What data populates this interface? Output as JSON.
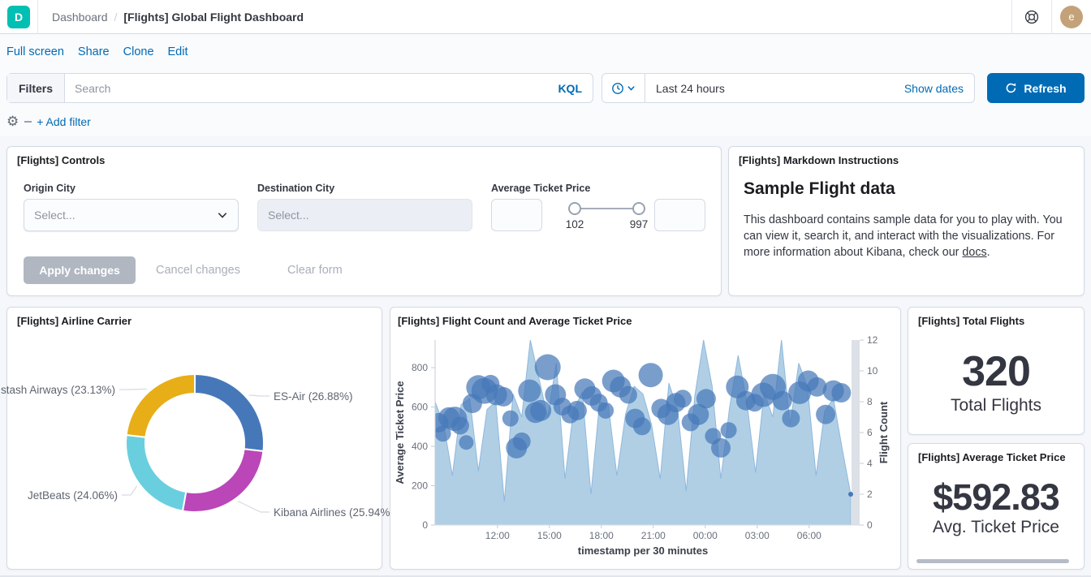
{
  "app": {
    "logo_letter": "D",
    "logo_color": "#00BFB3"
  },
  "header": {
    "breadcrumb": {
      "parent": "Dashboard",
      "separator": "/",
      "current": "[Flights] Global Flight Dashboard"
    },
    "avatar_initial": "e"
  },
  "toolbar": {
    "links": [
      "Full screen",
      "Share",
      "Clone",
      "Edit"
    ]
  },
  "filter_bar": {
    "filters_label": "Filters",
    "search_placeholder": "Search",
    "kql_label": "KQL",
    "add_filter_label": "+ Add filter"
  },
  "time_picker": {
    "range_label": "Last 24 hours",
    "show_dates_label": "Show dates",
    "refresh_label": "Refresh"
  },
  "panels": {
    "controls": {
      "title": "[Flights] Controls",
      "origin": {
        "label": "Origin City",
        "placeholder": "Select..."
      },
      "destination": {
        "label": "Destination City",
        "placeholder": "Select..."
      },
      "price": {
        "label": "Average Ticket Price",
        "min_value": "102",
        "max_value": "997"
      },
      "apply_label": "Apply changes",
      "cancel_label": "Cancel changes",
      "clear_label": "Clear form"
    },
    "markdown": {
      "title": "[Flights] Markdown Instructions",
      "heading": "Sample Flight data",
      "body_before_link": "This dashboard contains sample data for you to play with. You can view it, search it, and interact with the visualizations. For more information about Kibana, check our ",
      "link_text": "docs",
      "body_after_link": "."
    },
    "pie": {
      "title": "[Flights] Airline Carrier"
    },
    "timeseries": {
      "title": "[Flights] Flight Count and Average Ticket Price"
    },
    "total_flights": {
      "title": "[Flights] Total Flights",
      "value": "320",
      "label": "Total Flights"
    },
    "avg_price": {
      "title": "[Flights] Average Ticket Price",
      "value": "$592.83",
      "label": "Avg. Ticket Price"
    }
  },
  "chart_data": [
    {
      "type": "pie",
      "title": "[Flights] Airline Carrier",
      "donut": true,
      "slices": [
        {
          "name": "ES-Air",
          "pct": 26.88,
          "label": "ES-Air (26.88%)",
          "color": "#4678B9",
          "label_x": 328,
          "label_y": 88,
          "anchor": "start"
        },
        {
          "name": "Kibana Airlines",
          "pct": 25.94,
          "label": "Kibana Airlines (25.94%)",
          "color": "#BA46B8",
          "label_x": 328,
          "label_y": 231,
          "anchor": "start"
        },
        {
          "name": "JetBeats",
          "pct": 24.06,
          "label": "JetBeats (24.06%)",
          "color": "#69CFDF",
          "label_x": 136,
          "label_y": 210,
          "anchor": "end"
        },
        {
          "name": "stash Airways",
          "pct": 23.13,
          "label": "stash Airways (23.13%)",
          "color": "#E8AE17",
          "label_x": 133,
          "label_y": 80,
          "anchor": "end"
        }
      ],
      "legend_position": "callout-labels",
      "label_color": "#5F6570"
    },
    {
      "type": "mixed",
      "title": "[Flights] Flight Count and Average Ticket Price",
      "x_axis": {
        "title": "timestamp per 30 minutes",
        "tick_labels": [
          "12:00",
          "15:00",
          "18:00",
          "21:00",
          "00:00",
          "03:00",
          "06:00"
        ],
        "tick_t": [
          7.2,
          13.2,
          19.2,
          25.2,
          31.2,
          37.2,
          43.2
        ],
        "bucket_count": 48
      },
      "y_left": {
        "title": "Average Ticket Price",
        "ticks": [
          0,
          200,
          400,
          600,
          800
        ],
        "range": [
          0,
          950
        ]
      },
      "y_right": {
        "title": "Flight Count",
        "ticks": [
          0,
          2,
          4,
          6,
          8,
          10,
          12
        ],
        "range": [
          0,
          12
        ]
      },
      "grid": false,
      "series": [
        {
          "name": "Flight Count",
          "type": "area",
          "axis": "right",
          "color": "#A9CBE3",
          "stroke": "#8FB8DC",
          "values": [
            8,
            6.5,
            3.2,
            7.8,
            8.2,
            3.5,
            7.5,
            8,
            1.5,
            8.5,
            7,
            12,
            9.5,
            7,
            10.5,
            3,
            7.5,
            8.6,
            2,
            8,
            7.8,
            3.2,
            7.2,
            9,
            8.5,
            6.5,
            3,
            9.2,
            7.5,
            2.2,
            8.4,
            12,
            9,
            3,
            7.6,
            11,
            8,
            3.4,
            8.6,
            7,
            12,
            6.5,
            10.5,
            9,
            3.2,
            7.4,
            8.2,
            5,
            2
          ]
        },
        {
          "name": "Average Ticket Price",
          "type": "bubble",
          "axis": "left",
          "color": "#4678B9",
          "opacity": 0.72,
          "points": [
            [
              0.4,
              520,
              12
            ],
            [
              0.9,
              465,
              10
            ],
            [
              1.6,
              545,
              13
            ],
            [
              2.3,
              540,
              15
            ],
            [
              2.9,
              505,
              11
            ],
            [
              3.6,
              420,
              9
            ],
            [
              4.3,
              618,
              12
            ],
            [
              5.0,
              700,
              15
            ],
            [
              5.7,
              682,
              16
            ],
            [
              6.4,
              718,
              11
            ],
            [
              7.1,
              662,
              13
            ],
            [
              7.9,
              652,
              12
            ],
            [
              8.7,
              542,
              10
            ],
            [
              9.4,
              392,
              13
            ],
            [
              10.0,
              425,
              11
            ],
            [
              10.9,
              682,
              14
            ],
            [
              11.6,
              572,
              13
            ],
            [
              12.2,
              582,
              13
            ],
            [
              13.0,
              802,
              16
            ],
            [
              13.9,
              662,
              13
            ],
            [
              14.7,
              602,
              11
            ],
            [
              15.6,
              562,
              11
            ],
            [
              16.4,
              582,
              12
            ],
            [
              17.3,
              692,
              13
            ],
            [
              18.1,
              656,
              12
            ],
            [
              18.9,
              622,
              11
            ],
            [
              19.7,
              582,
              10
            ],
            [
              20.6,
              732,
              14
            ],
            [
              21.4,
              702,
              13
            ],
            [
              22.3,
              662,
              11
            ],
            [
              23.1,
              542,
              12
            ],
            [
              23.9,
              502,
              11
            ],
            [
              24.9,
              762,
              15
            ],
            [
              26.1,
              592,
              12
            ],
            [
              26.9,
              562,
              13
            ],
            [
              27.8,
              622,
              12
            ],
            [
              28.6,
              642,
              11
            ],
            [
              29.5,
              522,
              11
            ],
            [
              30.4,
              562,
              13
            ],
            [
              31.3,
              642,
              12
            ],
            [
              32.1,
              452,
              10
            ],
            [
              33.0,
              392,
              12
            ],
            [
              33.9,
              482,
              10
            ],
            [
              34.9,
              702,
              14
            ],
            [
              35.9,
              632,
              12
            ],
            [
              36.9,
              622,
              11
            ],
            [
              37.9,
              662,
              15
            ],
            [
              39.0,
              702,
              16
            ],
            [
              40.1,
              632,
              12
            ],
            [
              41.1,
              542,
              11
            ],
            [
              42.1,
              672,
              14
            ],
            [
              43.1,
              732,
              13
            ],
            [
              44.1,
              702,
              12
            ],
            [
              45.1,
              562,
              12
            ],
            [
              46.0,
              682,
              13
            ],
            [
              46.9,
              672,
              12
            ]
          ]
        }
      ]
    }
  ]
}
